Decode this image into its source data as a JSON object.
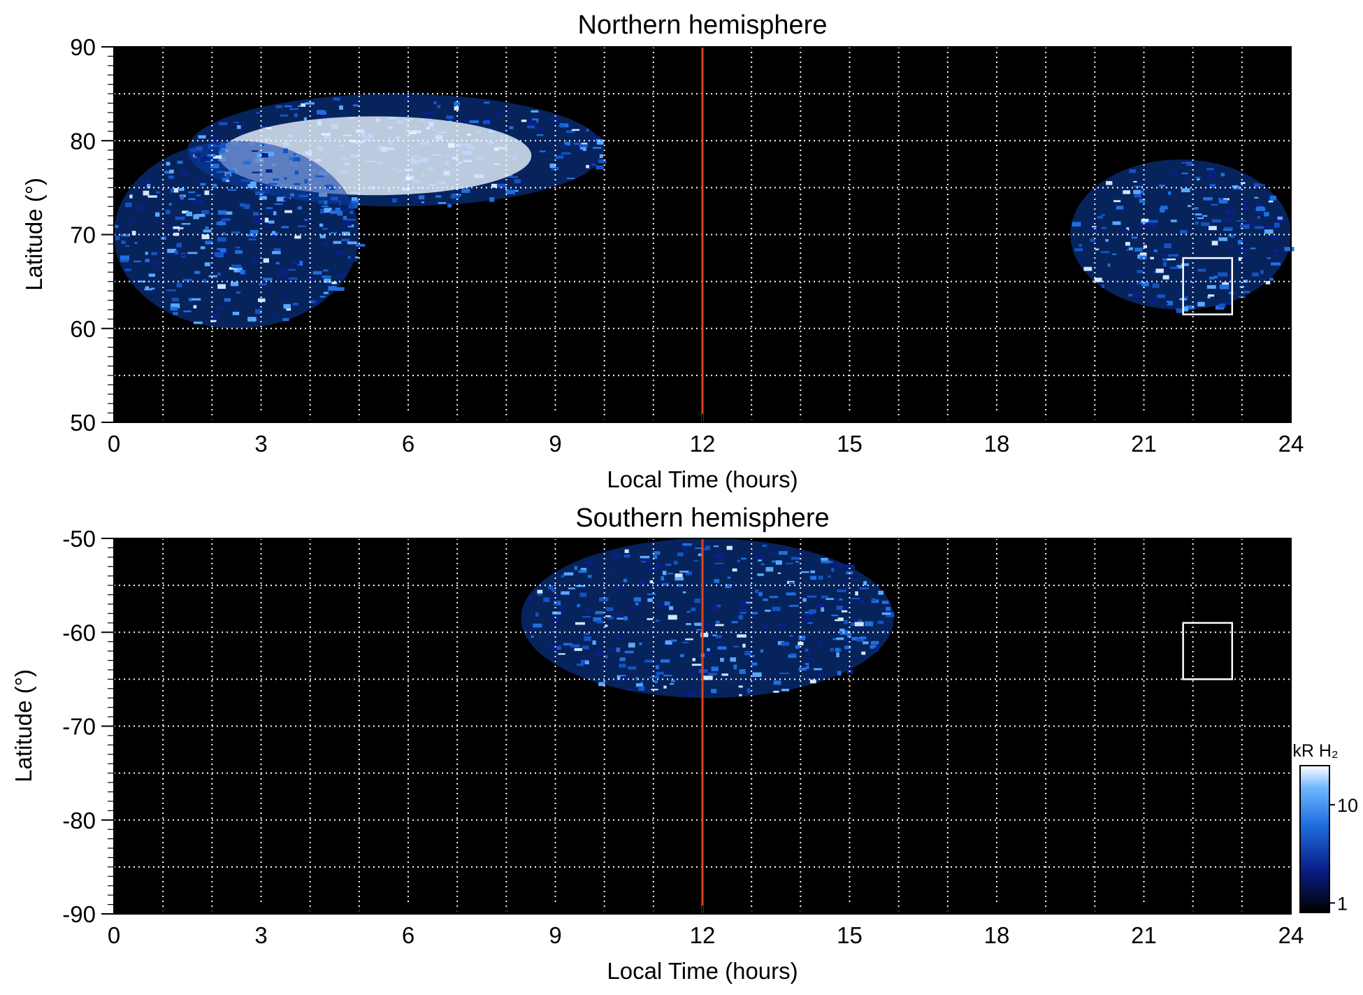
{
  "chart_data": [
    {
      "type": "heatmap",
      "title": "Northern hemisphere",
      "xlabel": "Local Time (hours)",
      "ylabel": "Latitude (°)",
      "xlim": [
        0,
        24
      ],
      "ylim": [
        50,
        90
      ],
      "xticks": [
        "0",
        "3",
        "6",
        "9",
        "12",
        "15",
        "18",
        "21",
        "24"
      ],
      "yticks": [
        "50",
        "60",
        "70",
        "80",
        "90"
      ],
      "grid": true,
      "noon_line_x": 12,
      "box": {
        "x": [
          21.8,
          22.8
        ],
        "y": [
          61.5,
          67.5
        ]
      },
      "emission_regions": [
        {
          "description": "bright arc",
          "lt_range": [
            1.5,
            10
          ],
          "lat_range": [
            73,
            85
          ]
        },
        {
          "description": "dawn oval",
          "lt_range": [
            0,
            5
          ],
          "lat_range": [
            60,
            80
          ]
        },
        {
          "description": "dusk oval",
          "lt_range": [
            19.5,
            24
          ],
          "lat_range": [
            62,
            78
          ]
        }
      ]
    },
    {
      "type": "heatmap",
      "title": "Southern hemisphere",
      "xlabel": "Local Time (hours)",
      "ylabel": "Latitude (°)",
      "xlim": [
        0,
        24
      ],
      "ylim": [
        -90,
        -50
      ],
      "xticks": [
        "0",
        "3",
        "6",
        "9",
        "12",
        "15",
        "18",
        "21",
        "24"
      ],
      "yticks": [
        "-50",
        "-60",
        "-70",
        "-80",
        "-90"
      ],
      "grid": true,
      "noon_line_x": 12,
      "box": {
        "x": [
          21.8,
          22.8
        ],
        "y": [
          -65,
          -59
        ]
      },
      "emission_regions": [
        {
          "description": "dayside oval",
          "lt_range": [
            8.3,
            15.9
          ],
          "lat_range": [
            -67,
            -50
          ]
        }
      ]
    }
  ],
  "colorbar": {
    "title": "kR H₂",
    "ticks": [
      "10",
      "1"
    ],
    "scale": "log",
    "range": [
      0.8,
      25
    ],
    "colors": [
      "#000000",
      "#0a1f8c",
      "#1f6fe0",
      "#6fb8ff",
      "#ffffff"
    ]
  },
  "colors": {
    "noon_line": "#d9451f",
    "grid": "#ffffff",
    "background": "#000000"
  }
}
